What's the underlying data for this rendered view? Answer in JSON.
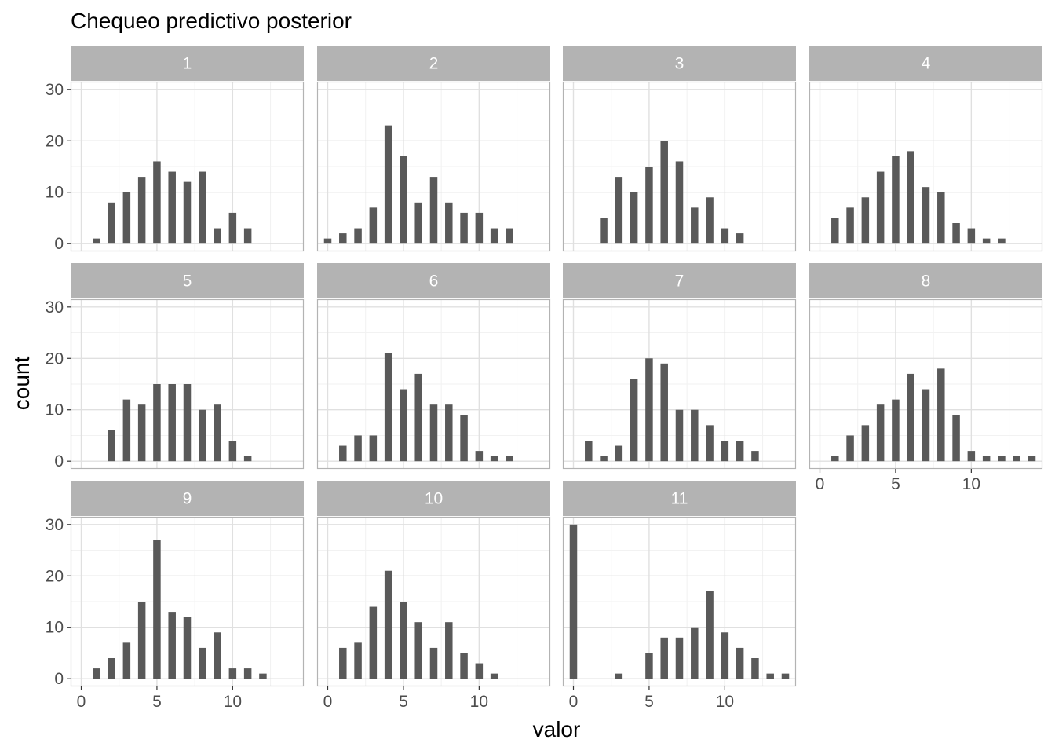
{
  "chart_data": {
    "type": "bar",
    "title": "Chequeo predictivo posterior",
    "xlabel": "valor",
    "ylabel": "count",
    "xlim": [
      -0.7,
      14.7
    ],
    "ylim": [
      -1.5,
      31.5
    ],
    "x_ticks": [
      0,
      5,
      10
    ],
    "y_ticks": [
      0,
      10,
      20,
      30
    ],
    "grid": true,
    "bar_color": "#595959",
    "strip_color": "#b3b3b3",
    "panels": [
      {
        "label": "1",
        "x": [
          1,
          2,
          3,
          4,
          5,
          6,
          7,
          8,
          9,
          10,
          11
        ],
        "values": [
          1,
          8,
          10,
          13,
          16,
          14,
          12,
          14,
          3,
          6,
          3
        ]
      },
      {
        "label": "2",
        "x": [
          0,
          1,
          2,
          3,
          4,
          5,
          6,
          7,
          8,
          9,
          10,
          11,
          12
        ],
        "values": [
          1,
          2,
          3,
          7,
          23,
          17,
          8,
          13,
          8,
          6,
          6,
          3,
          3
        ]
      },
      {
        "label": "3",
        "x": [
          2,
          3,
          4,
          5,
          6,
          7,
          8,
          9,
          10,
          11
        ],
        "values": [
          5,
          13,
          10,
          15,
          20,
          16,
          7,
          9,
          3,
          2
        ]
      },
      {
        "label": "4",
        "x": [
          1,
          2,
          3,
          4,
          5,
          6,
          7,
          8,
          9,
          10,
          11,
          12
        ],
        "values": [
          5,
          7,
          9,
          14,
          17,
          18,
          11,
          10,
          4,
          3,
          1,
          1
        ]
      },
      {
        "label": "5",
        "x": [
          2,
          3,
          4,
          5,
          6,
          7,
          8,
          9,
          10,
          11
        ],
        "values": [
          6,
          12,
          11,
          15,
          15,
          15,
          10,
          11,
          4,
          1
        ]
      },
      {
        "label": "6",
        "x": [
          1,
          2,
          3,
          4,
          5,
          6,
          7,
          8,
          9,
          10,
          11,
          12
        ],
        "values": [
          3,
          5,
          5,
          21,
          14,
          17,
          11,
          11,
          9,
          2,
          1,
          1
        ]
      },
      {
        "label": "7",
        "x": [
          1,
          2,
          3,
          4,
          5,
          6,
          7,
          8,
          9,
          10,
          11,
          12
        ],
        "values": [
          4,
          1,
          3,
          16,
          20,
          19,
          10,
          10,
          7,
          4,
          4,
          2
        ]
      },
      {
        "label": "8",
        "x": [
          1,
          2,
          3,
          4,
          5,
          6,
          7,
          8,
          9,
          10,
          11,
          12,
          13,
          14
        ],
        "values": [
          1,
          5,
          7,
          11,
          12,
          17,
          14,
          18,
          9,
          2,
          1,
          1,
          1,
          1
        ]
      },
      {
        "label": "9",
        "x": [
          1,
          2,
          3,
          4,
          5,
          6,
          7,
          8,
          9,
          10,
          11,
          12
        ],
        "values": [
          2,
          4,
          7,
          15,
          27,
          13,
          12,
          6,
          9,
          2,
          2,
          1
        ]
      },
      {
        "label": "10",
        "x": [
          1,
          2,
          3,
          4,
          5,
          6,
          7,
          8,
          9,
          10,
          11
        ],
        "values": [
          6,
          7,
          14,
          21,
          15,
          11,
          6,
          11,
          5,
          3,
          1
        ]
      },
      {
        "label": "11",
        "x": [
          0,
          3,
          5,
          6,
          7,
          8,
          9,
          10,
          11,
          12,
          13,
          14
        ],
        "values": [
          30,
          1,
          5,
          8,
          8,
          10,
          17,
          9,
          6,
          4,
          1,
          1
        ]
      }
    ]
  }
}
